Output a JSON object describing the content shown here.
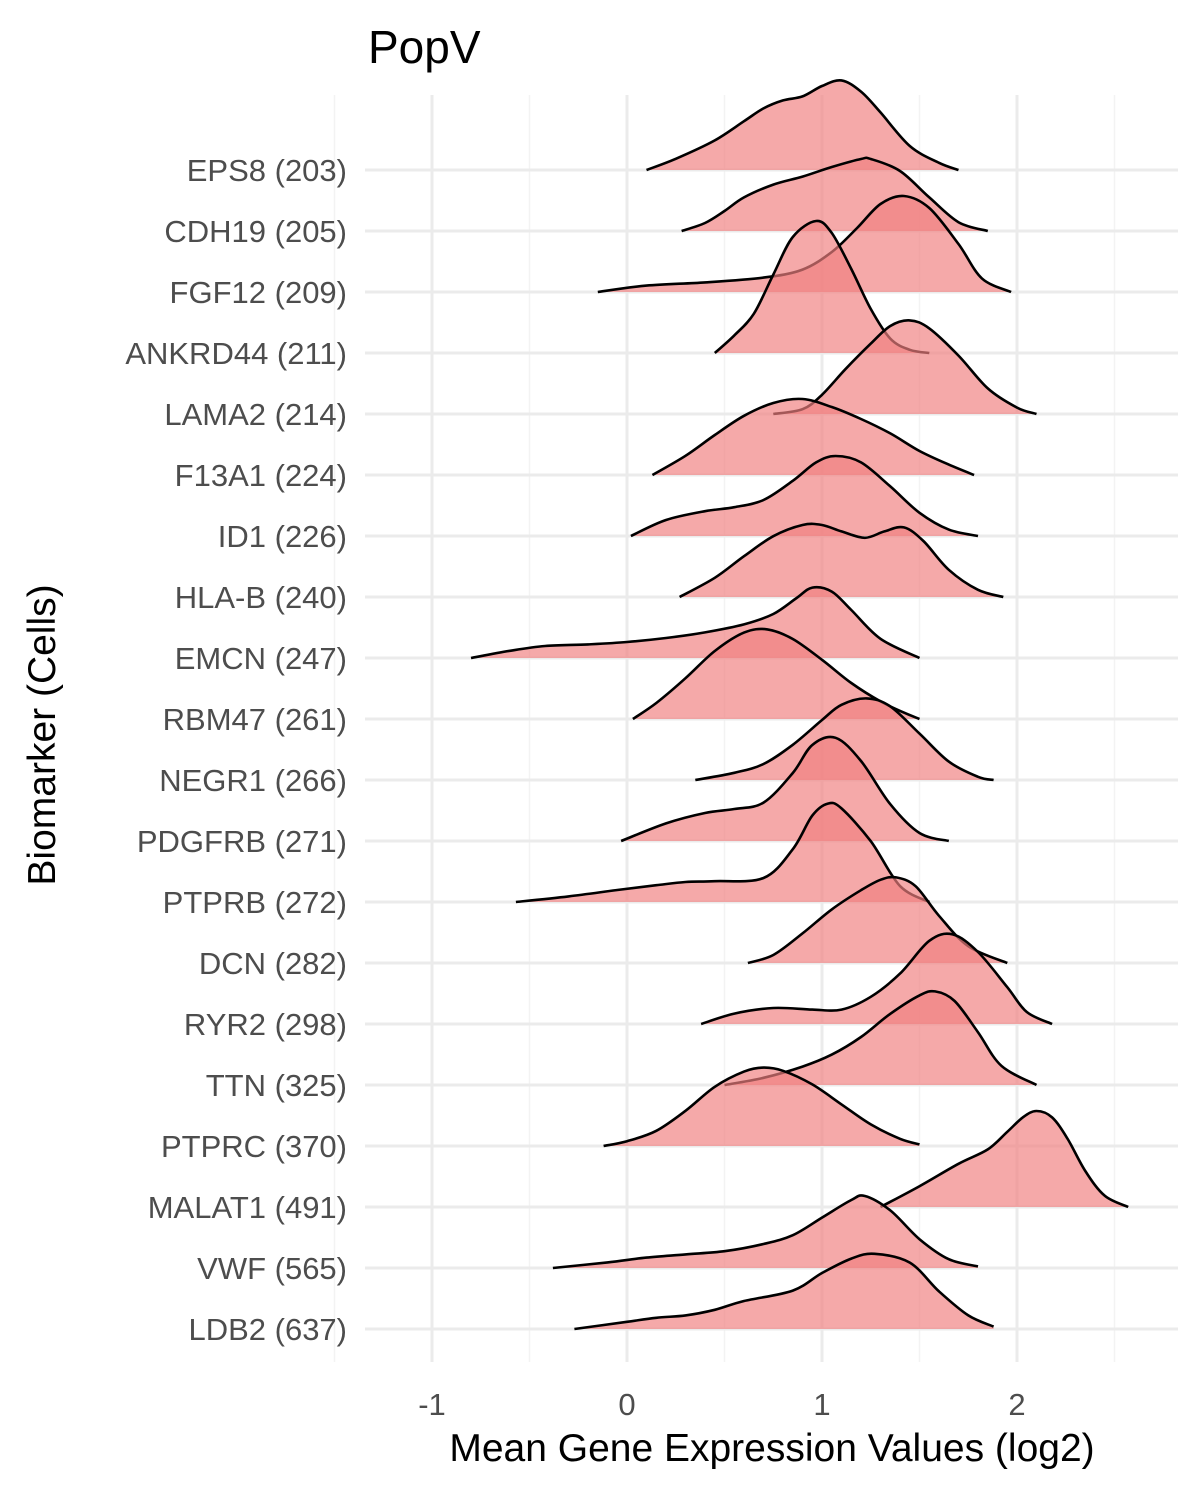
{
  "chart_data": {
    "type": "ridgeline",
    "title": "PopV",
    "xlabel": "Mean Gene Expression Values (log2)",
    "ylabel": "Biomarker (Cells)",
    "xlim": [
      -1.3,
      2.8
    ],
    "x_ticks": [
      "-1",
      "0",
      "1",
      "2"
    ],
    "x_tick_values": [
      -1,
      0,
      1,
      2
    ],
    "grid": true,
    "legend": "none",
    "fill_color": "#F08080",
    "fill_opacity": 0.68,
    "line_color": "#000000",
    "categories": [
      "LDB2 (637)",
      "VWF (565)",
      "MALAT1 (491)",
      "PTPRC (370)",
      "TTN (325)",
      "RYR2 (298)",
      "DCN (282)",
      "PTPRB (272)",
      "PDGFRB (271)",
      "NEGR1 (266)",
      "RBM47 (261)",
      "EMCN (247)",
      "HLA-B (240)",
      "ID1 (226)",
      "F13A1 (224)",
      "LAMA2 (214)",
      "ANKRD44 (211)",
      "FGF12 (209)",
      "CDH19 (205)",
      "EPS8 (203)"
    ],
    "series": [
      {
        "category": "LDB2 (637)",
        "x": [
          -0.27,
          0.0,
          0.15,
          0.3,
          0.45,
          0.6,
          0.85,
          1.0,
          1.15,
          1.27,
          1.45,
          1.6,
          1.75,
          1.88
        ],
        "density": [
          0.0,
          0.09,
          0.14,
          0.17,
          0.24,
          0.35,
          0.48,
          0.7,
          0.88,
          0.94,
          0.83,
          0.47,
          0.17,
          0.03
        ]
      },
      {
        "category": "VWF (565)",
        "x": [
          -0.38,
          -0.1,
          0.1,
          0.3,
          0.5,
          0.7,
          0.85,
          1.0,
          1.15,
          1.22,
          1.35,
          1.5,
          1.65,
          1.8
        ],
        "density": [
          0.0,
          0.07,
          0.13,
          0.17,
          0.21,
          0.3,
          0.41,
          0.63,
          0.85,
          0.9,
          0.72,
          0.36,
          0.11,
          0.02
        ]
      },
      {
        "category": "MALAT1 (491)",
        "x": [
          1.3,
          1.5,
          1.7,
          1.85,
          1.95,
          2.03,
          2.1,
          2.18,
          2.26,
          2.35,
          2.45,
          2.57
        ],
        "density": [
          0.0,
          0.26,
          0.54,
          0.72,
          0.94,
          1.12,
          1.2,
          1.12,
          0.85,
          0.45,
          0.14,
          0.0
        ]
      },
      {
        "category": "PTPRC (370)",
        "x": [
          -0.12,
          0.0,
          0.15,
          0.3,
          0.45,
          0.6,
          0.7,
          0.8,
          0.95,
          1.1,
          1.25,
          1.4,
          1.5
        ],
        "density": [
          0.0,
          0.06,
          0.19,
          0.44,
          0.74,
          0.93,
          0.98,
          0.94,
          0.77,
          0.52,
          0.27,
          0.09,
          0.02
        ]
      },
      {
        "category": "TTN (325)",
        "x": [
          0.5,
          0.7,
          0.9,
          1.05,
          1.2,
          1.35,
          1.5,
          1.58,
          1.68,
          1.8,
          1.92,
          2.1
        ],
        "density": [
          0.0,
          0.09,
          0.23,
          0.38,
          0.6,
          0.89,
          1.12,
          1.17,
          1.05,
          0.66,
          0.24,
          0.0
        ]
      },
      {
        "category": "RYR2 (298)",
        "x": [
          0.38,
          0.55,
          0.75,
          0.95,
          1.1,
          1.25,
          1.4,
          1.55,
          1.67,
          1.8,
          1.95,
          2.05,
          2.18
        ],
        "density": [
          0.0,
          0.13,
          0.2,
          0.18,
          0.18,
          0.34,
          0.63,
          1.04,
          1.12,
          0.9,
          0.46,
          0.15,
          0.0
        ]
      },
      {
        "category": "DCN (282)",
        "x": [
          0.62,
          0.75,
          0.9,
          1.05,
          1.2,
          1.3,
          1.38,
          1.48,
          1.6,
          1.75,
          1.95
        ],
        "density": [
          0.0,
          0.1,
          0.37,
          0.67,
          0.91,
          1.04,
          1.07,
          0.96,
          0.59,
          0.21,
          0.0
        ]
      },
      {
        "category": "PTPRB (272)",
        "x": [
          -0.57,
          -0.3,
          -0.05,
          0.15,
          0.3,
          0.45,
          0.7,
          0.85,
          0.95,
          1.03,
          1.1,
          1.25,
          1.4,
          1.55
        ],
        "density": [
          0.0,
          0.07,
          0.15,
          0.21,
          0.25,
          0.26,
          0.3,
          0.66,
          1.08,
          1.23,
          1.17,
          0.76,
          0.2,
          0.0
        ]
      },
      {
        "category": "PDGFRB (271)",
        "x": [
          -0.03,
          0.2,
          0.4,
          0.55,
          0.7,
          0.85,
          0.95,
          1.07,
          1.2,
          1.35,
          1.5,
          1.65
        ],
        "density": [
          0.0,
          0.22,
          0.35,
          0.4,
          0.48,
          0.85,
          1.2,
          1.29,
          1.0,
          0.46,
          0.1,
          0.0
        ]
      },
      {
        "category": "NEGR1 (266)",
        "x": [
          0.35,
          0.55,
          0.7,
          0.85,
          1.0,
          1.1,
          1.23,
          1.35,
          1.5,
          1.65,
          1.8,
          1.88
        ],
        "density": [
          0.0,
          0.09,
          0.2,
          0.44,
          0.75,
          0.94,
          1.02,
          0.92,
          0.58,
          0.23,
          0.04,
          0.0
        ]
      },
      {
        "category": "RBM47 (261)",
        "x": [
          0.03,
          0.15,
          0.3,
          0.45,
          0.6,
          0.72,
          0.85,
          1.0,
          1.15,
          1.3,
          1.42,
          1.5
        ],
        "density": [
          0.0,
          0.2,
          0.51,
          0.85,
          1.08,
          1.12,
          1.0,
          0.74,
          0.45,
          0.22,
          0.08,
          0.0
        ]
      },
      {
        "category": "EMCN (247)",
        "x": [
          -0.8,
          -0.6,
          -0.42,
          -0.2,
          0.0,
          0.2,
          0.4,
          0.6,
          0.75,
          0.87,
          0.95,
          1.05,
          1.15,
          1.3,
          1.5
        ],
        "density": [
          0.0,
          0.09,
          0.15,
          0.17,
          0.2,
          0.25,
          0.32,
          0.42,
          0.55,
          0.75,
          0.88,
          0.83,
          0.6,
          0.24,
          0.0
        ]
      },
      {
        "category": "HLA-B (240)",
        "x": [
          0.27,
          0.45,
          0.6,
          0.75,
          0.9,
          1.0,
          1.1,
          1.22,
          1.32,
          1.42,
          1.52,
          1.65,
          1.8,
          1.93
        ],
        "density": [
          0.0,
          0.24,
          0.51,
          0.76,
          0.9,
          0.9,
          0.82,
          0.74,
          0.82,
          0.87,
          0.7,
          0.34,
          0.09,
          0.0
        ]
      },
      {
        "category": "ID1 (226)",
        "x": [
          0.02,
          0.2,
          0.4,
          0.55,
          0.7,
          0.85,
          0.97,
          1.07,
          1.2,
          1.35,
          1.5,
          1.65,
          1.8
        ],
        "density": [
          0.0,
          0.2,
          0.31,
          0.36,
          0.45,
          0.69,
          0.92,
          1.0,
          0.92,
          0.62,
          0.29,
          0.08,
          0.0
        ]
      },
      {
        "category": "F13A1 (224)",
        "x": [
          0.13,
          0.3,
          0.45,
          0.6,
          0.75,
          0.9,
          1.05,
          1.2,
          1.35,
          1.5,
          1.65,
          1.78
        ],
        "density": [
          0.0,
          0.24,
          0.5,
          0.74,
          0.9,
          0.95,
          0.85,
          0.7,
          0.52,
          0.3,
          0.13,
          0.0
        ]
      },
      {
        "category": "LAMA2 (214)",
        "x": [
          0.75,
          0.9,
          1.0,
          1.12,
          1.25,
          1.35,
          1.45,
          1.55,
          1.7,
          1.85,
          2.0,
          2.1
        ],
        "density": [
          0.0,
          0.06,
          0.24,
          0.56,
          0.88,
          1.1,
          1.17,
          1.07,
          0.73,
          0.32,
          0.08,
          0.0
        ]
      },
      {
        "category": "ANKRD44 (211)",
        "x": [
          0.45,
          0.55,
          0.65,
          0.75,
          0.85,
          0.97,
          1.05,
          1.15,
          1.25,
          1.35,
          1.45,
          1.55
        ],
        "density": [
          0.0,
          0.22,
          0.49,
          0.98,
          1.45,
          1.65,
          1.5,
          1.05,
          0.55,
          0.18,
          0.04,
          0.0
        ]
      },
      {
        "category": "FGF12 (209)",
        "x": [
          -0.15,
          0.1,
          0.4,
          0.7,
          0.9,
          1.05,
          1.18,
          1.3,
          1.42,
          1.55,
          1.7,
          1.82,
          1.97
        ],
        "density": [
          0.0,
          0.08,
          0.12,
          0.18,
          0.28,
          0.5,
          0.8,
          1.1,
          1.2,
          1.05,
          0.6,
          0.17,
          0.0
        ]
      },
      {
        "category": "CDH19 (205)",
        "x": [
          0.28,
          0.4,
          0.5,
          0.6,
          0.75,
          0.9,
          1.05,
          1.2,
          1.25,
          1.4,
          1.55,
          1.7,
          1.85
        ],
        "density": [
          0.0,
          0.1,
          0.25,
          0.42,
          0.58,
          0.68,
          0.8,
          0.9,
          0.9,
          0.75,
          0.42,
          0.11,
          0.0
        ]
      },
      {
        "category": "EPS8 (203)",
        "x": [
          0.1,
          0.25,
          0.45,
          0.6,
          0.7,
          0.8,
          0.9,
          1.0,
          1.1,
          1.2,
          1.3,
          1.45,
          1.6,
          1.7
        ],
        "density": [
          0.0,
          0.14,
          0.37,
          0.61,
          0.77,
          0.87,
          0.92,
          1.05,
          1.12,
          0.98,
          0.72,
          0.3,
          0.09,
          0.0
        ]
      }
    ]
  }
}
